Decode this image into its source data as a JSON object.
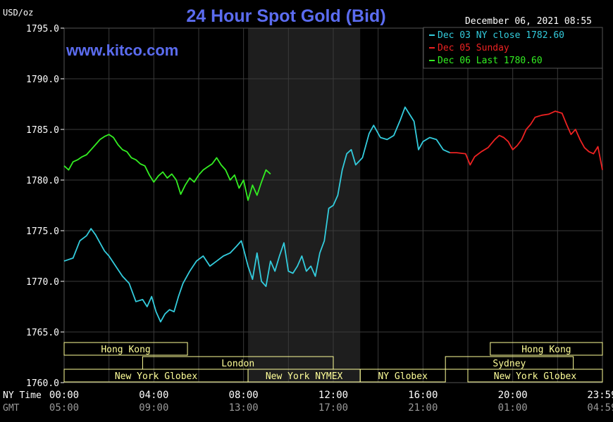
{
  "chart_data": {
    "type": "line",
    "title": "24 Hour Spot Gold (Bid)",
    "watermark": "www.kitco.com",
    "unit_label": "USD/oz",
    "timestamp": "December 06, 2021 08:55",
    "ylim": [
      1760,
      1795
    ],
    "xlim": [
      0,
      24
    ],
    "y_ticks": [
      "1795.0",
      "1790.0",
      "1785.0",
      "1780.0",
      "1775.0",
      "1770.0",
      "1765.0",
      "1760.0"
    ],
    "y_tick_values": [
      1795,
      1790,
      1785,
      1780,
      1775,
      1770,
      1765,
      1760
    ],
    "x_axis_rows": [
      {
        "label": "NY Time",
        "ticks": [
          "00:00",
          "04:00",
          "08:00",
          "12:00",
          "16:00",
          "20:00",
          "23:59"
        ]
      },
      {
        "label": "GMT",
        "ticks": [
          "05:00",
          "09:00",
          "13:00",
          "17:00",
          "21:00",
          "01:00",
          "04:59"
        ]
      }
    ],
    "x_tick_hours": [
      0,
      4,
      8,
      12,
      16,
      20,
      23.983
    ],
    "shaded_interval": [
      8.2,
      13.2
    ],
    "colors": {
      "background": "#000000",
      "grid": "#3a3a3a",
      "axis_text": "#ffffff",
      "title": "#5b6cf0",
      "session": "#ffff99"
    },
    "legend": [
      {
        "text": "Dec 03 NY close 1782.60",
        "color": "#33ccdd"
      },
      {
        "text": "Dec 05 Sunday",
        "color": "#ee2222"
      },
      {
        "text": "Dec 06 Last 1780.60",
        "color": "#33ee22"
      }
    ],
    "sessions": [
      {
        "name": "Hong Kong",
        "start": 0,
        "end": 5.5,
        "row": 0
      },
      {
        "name": "London",
        "start": 3.5,
        "end": 12.0,
        "row": 1
      },
      {
        "name": "New York Globex",
        "start": 0,
        "end": 8.2,
        "row": 2
      },
      {
        "name": "New York NYMEX",
        "start": 8.2,
        "end": 13.2,
        "row": 2
      },
      {
        "name": "NY Globex",
        "start": 13.2,
        "end": 17.0,
        "row": 2
      },
      {
        "name": "Sydney",
        "start": 17.0,
        "end": 22.7,
        "row": 1
      },
      {
        "name": "Hong Kong",
        "start": 19.0,
        "end": 24.0,
        "row": 0
      },
      {
        "name": "New York Globex",
        "start": 18.0,
        "end": 24.0,
        "row": 2
      }
    ],
    "series": [
      {
        "name": "Dec 03 NY close 1782.60",
        "color": "#33ccdd",
        "x": [
          0,
          0.4,
          0.7,
          1.0,
          1.2,
          1.4,
          1.6,
          1.8,
          2.0,
          2.3,
          2.6,
          2.9,
          3.2,
          3.5,
          3.7,
          3.9,
          4.1,
          4.3,
          4.5,
          4.7,
          4.9,
          5.1,
          5.3,
          5.6,
          5.9,
          6.2,
          6.5,
          6.8,
          7.1,
          7.4,
          7.7,
          7.9,
          8.0,
          8.2,
          8.4,
          8.6,
          8.8,
          9.0,
          9.2,
          9.4,
          9.6,
          9.8,
          10.0,
          10.2,
          10.4,
          10.6,
          10.8,
          11.0,
          11.2,
          11.4,
          11.6,
          11.8,
          12.0,
          12.2,
          12.4,
          12.6,
          12.8,
          13.0,
          13.3,
          13.6,
          13.8,
          14.1,
          14.4,
          14.7,
          15.0,
          15.2,
          15.4,
          15.6,
          15.8,
          16.0,
          16.3,
          16.6,
          16.9,
          17.2
        ],
        "y": [
          1772.0,
          1772.3,
          1774.0,
          1774.5,
          1775.2,
          1774.6,
          1773.8,
          1773.0,
          1772.5,
          1771.5,
          1770.5,
          1769.8,
          1768.0,
          1768.2,
          1767.5,
          1768.5,
          1767.0,
          1766.0,
          1766.8,
          1767.2,
          1767.0,
          1768.5,
          1769.8,
          1771.0,
          1772.0,
          1772.5,
          1771.5,
          1772.0,
          1772.5,
          1772.8,
          1773.5,
          1774.0,
          1773.2,
          1771.5,
          1770.2,
          1772.8,
          1770.0,
          1769.5,
          1772.0,
          1771.0,
          1772.5,
          1773.8,
          1771.0,
          1770.8,
          1771.5,
          1772.5,
          1771.0,
          1771.5,
          1770.5,
          1772.8,
          1774.0,
          1777.2,
          1777.5,
          1778.5,
          1781.0,
          1782.6,
          1783.0,
          1781.5,
          1782.2,
          1784.6,
          1785.4,
          1784.2,
          1784.0,
          1784.4,
          1786.0,
          1787.2,
          1786.5,
          1785.8,
          1783.0,
          1783.8,
          1784.2,
          1784.0,
          1783.0,
          1782.7
        ]
      },
      {
        "name": "Dec 05 Sunday",
        "color": "#ee2222",
        "x": [
          17.2,
          17.5,
          17.9,
          18.1,
          18.3,
          18.6,
          18.9,
          19.2,
          19.4,
          19.6,
          19.8,
          20.0,
          20.2,
          20.4,
          20.6,
          20.8,
          21.0,
          21.3,
          21.6,
          21.9,
          22.2,
          22.4,
          22.6,
          22.8,
          23.0,
          23.2,
          23.4,
          23.6,
          23.8,
          24.0
        ],
        "y": [
          1782.7,
          1782.7,
          1782.6,
          1781.5,
          1782.3,
          1782.8,
          1783.2,
          1784.0,
          1784.4,
          1784.2,
          1783.8,
          1783.0,
          1783.4,
          1784.0,
          1785.0,
          1785.5,
          1786.2,
          1786.4,
          1786.5,
          1786.8,
          1786.6,
          1785.5,
          1784.5,
          1785.0,
          1784.0,
          1783.2,
          1782.8,
          1782.6,
          1783.3,
          1781.0
        ]
      },
      {
        "name": "Dec 06 Last 1780.60",
        "color": "#33ee22",
        "x": [
          0,
          0.2,
          0.4,
          0.6,
          0.8,
          1.0,
          1.2,
          1.4,
          1.6,
          1.8,
          2.0,
          2.2,
          2.4,
          2.6,
          2.8,
          3.0,
          3.2,
          3.4,
          3.6,
          3.8,
          4.0,
          4.2,
          4.4,
          4.6,
          4.8,
          5.0,
          5.2,
          5.4,
          5.6,
          5.8,
          6.0,
          6.2,
          6.4,
          6.6,
          6.8,
          7.0,
          7.2,
          7.4,
          7.6,
          7.8,
          8.0,
          8.2,
          8.4,
          8.6,
          8.8,
          9.0,
          9.2
        ],
        "y": [
          1781.4,
          1781.0,
          1781.8,
          1782.0,
          1782.3,
          1782.5,
          1783.0,
          1783.5,
          1784.0,
          1784.3,
          1784.5,
          1784.2,
          1783.5,
          1783.0,
          1782.8,
          1782.2,
          1782.0,
          1781.6,
          1781.4,
          1780.5,
          1779.8,
          1780.4,
          1780.8,
          1780.2,
          1780.6,
          1780.0,
          1778.6,
          1779.5,
          1780.2,
          1779.8,
          1780.5,
          1781.0,
          1781.3,
          1781.6,
          1782.2,
          1781.5,
          1781.0,
          1780.0,
          1780.5,
          1779.2,
          1780.0,
          1778.0,
          1779.5,
          1778.5,
          1779.8,
          1781.0,
          1780.6
        ]
      }
    ]
  }
}
